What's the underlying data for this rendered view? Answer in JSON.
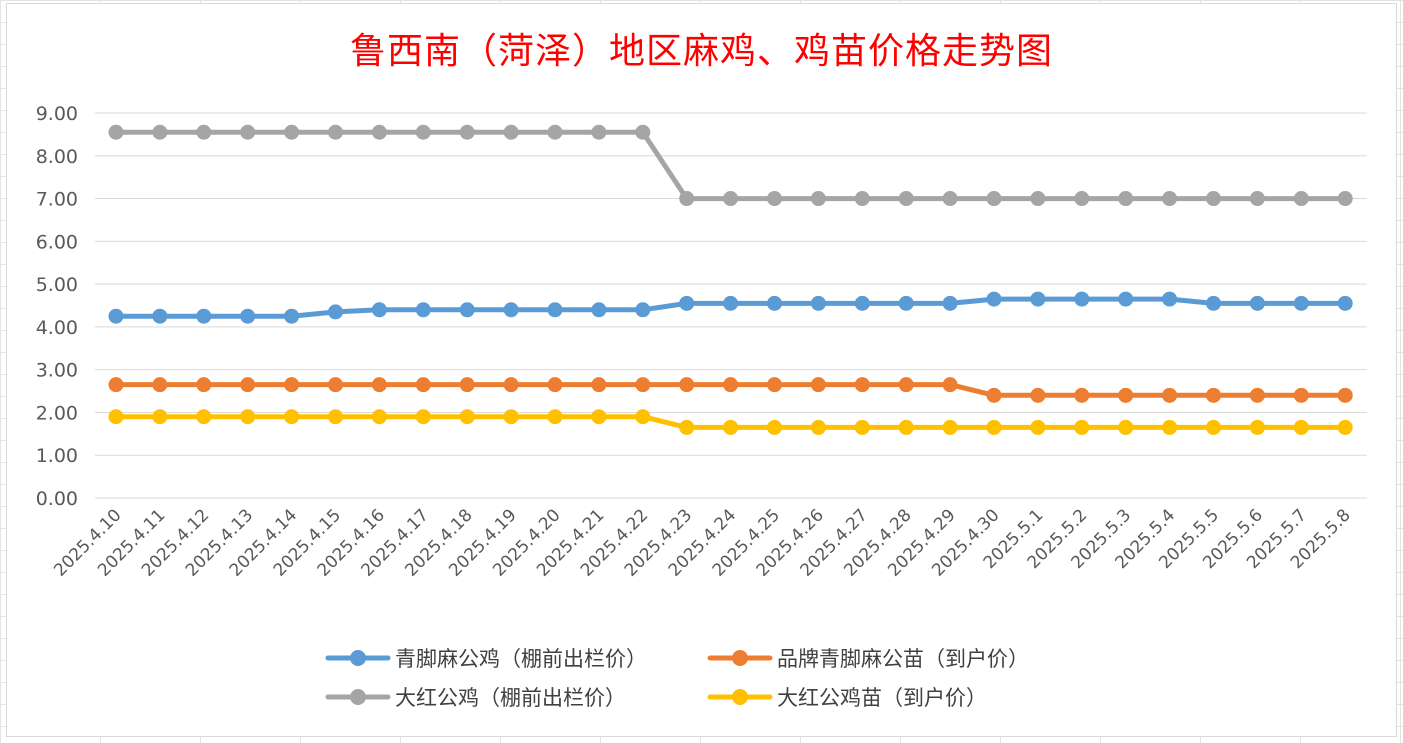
{
  "chart_data": {
    "type": "line",
    "title": "鲁西南（菏泽）地区麻鸡、鸡苗价格走势图",
    "xlabel": "",
    "ylabel": "",
    "ylim": [
      0,
      9
    ],
    "yticks": [
      "0.00",
      "1.00",
      "2.00",
      "3.00",
      "4.00",
      "5.00",
      "6.00",
      "7.00",
      "8.00",
      "9.00"
    ],
    "grid": true,
    "legend": "bottom",
    "categories": [
      "2025.4.10",
      "2025.4.11",
      "2025.4.12",
      "2025.4.13",
      "2025.4.14",
      "2025.4.15",
      "2025.4.16",
      "2025.4.17",
      "2025.4.18",
      "2025.4.19",
      "2025.4.20",
      "2025.4.21",
      "2025.4.22",
      "2025.4.23",
      "2025.4.24",
      "2025.4.25",
      "2025.4.26",
      "2025.4.27",
      "2025.4.28",
      "2025.4.29",
      "2025.4.30",
      "2025.5.1",
      "2025.5.2",
      "2025.5.3",
      "2025.5.4",
      "2025.5.5",
      "2025.5.6",
      "2025.5.7",
      "2025.5.8"
    ],
    "series": [
      {
        "name": "青脚麻公鸡（棚前出栏价）",
        "color": "#5b9bd5",
        "values": [
          4.25,
          4.25,
          4.25,
          4.25,
          4.25,
          4.35,
          4.4,
          4.4,
          4.4,
          4.4,
          4.4,
          4.4,
          4.4,
          4.55,
          4.55,
          4.55,
          4.55,
          4.55,
          4.55,
          4.55,
          4.65,
          4.65,
          4.65,
          4.65,
          4.65,
          4.55,
          4.55,
          4.55,
          4.55
        ]
      },
      {
        "name": "品牌青脚麻公苗（到户价）",
        "color": "#ed7d31",
        "values": [
          2.65,
          2.65,
          2.65,
          2.65,
          2.65,
          2.65,
          2.65,
          2.65,
          2.65,
          2.65,
          2.65,
          2.65,
          2.65,
          2.65,
          2.65,
          2.65,
          2.65,
          2.65,
          2.65,
          2.65,
          2.4,
          2.4,
          2.4,
          2.4,
          2.4,
          2.4,
          2.4,
          2.4,
          2.4
        ]
      },
      {
        "name": "大红公鸡（棚前出栏价）",
        "color": "#a5a5a5",
        "values": [
          8.55,
          8.55,
          8.55,
          8.55,
          8.55,
          8.55,
          8.55,
          8.55,
          8.55,
          8.55,
          8.55,
          8.55,
          8.55,
          7.0,
          7.0,
          7.0,
          7.0,
          7.0,
          7.0,
          7.0,
          7.0,
          7.0,
          7.0,
          7.0,
          7.0,
          7.0,
          7.0,
          7.0,
          7.0
        ]
      },
      {
        "name": "大红公鸡苗（到户价）",
        "color": "#ffc000",
        "values": [
          1.9,
          1.9,
          1.9,
          1.9,
          1.9,
          1.9,
          1.9,
          1.9,
          1.9,
          1.9,
          1.9,
          1.9,
          1.9,
          1.65,
          1.65,
          1.65,
          1.65,
          1.65,
          1.65,
          1.65,
          1.65,
          1.65,
          1.65,
          1.65,
          1.65,
          1.65,
          1.65,
          1.65,
          1.65
        ]
      }
    ]
  }
}
